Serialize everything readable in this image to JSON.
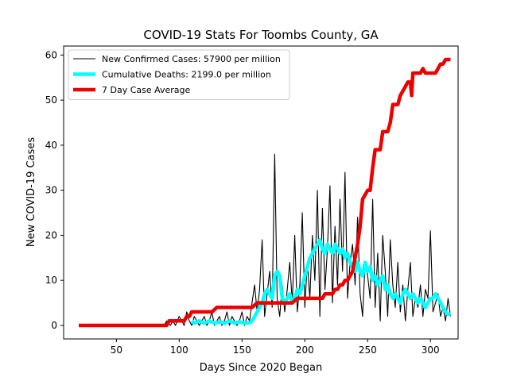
{
  "chart_data": {
    "type": "line",
    "title": "COVID-19 Stats For Toombs County, GA",
    "xlabel": "Days Since 2020 Began",
    "ylabel": "New COVID-19 Cases",
    "xlim": [
      8,
      322
    ],
    "ylim": [
      -3,
      62
    ],
    "xticks": [
      50,
      100,
      150,
      200,
      250,
      300
    ],
    "yticks": [
      0,
      10,
      20,
      30,
      40,
      50,
      60
    ],
    "grid": false,
    "legend": "top-left",
    "series": [
      {
        "name": "New Confirmed Cases: 57900 per million",
        "color": "#000000",
        "style": "thin",
        "x": [
          20,
          50,
          88,
          90,
          93,
          95,
          97,
          100,
          102,
          104,
          106,
          108,
          110,
          112,
          114,
          116,
          118,
          120,
          122,
          124,
          126,
          128,
          130,
          132,
          134,
          136,
          138,
          140,
          142,
          144,
          146,
          148,
          150,
          152,
          154,
          156,
          158,
          160,
          162,
          164,
          166,
          168,
          170,
          172,
          174,
          176,
          178,
          180,
          182,
          184,
          186,
          188,
          190,
          192,
          194,
          196,
          198,
          200,
          202,
          204,
          206,
          208,
          210,
          212,
          214,
          216,
          218,
          220,
          222,
          224,
          226,
          228,
          230,
          232,
          234,
          236,
          238,
          240,
          242,
          244,
          246,
          248,
          250,
          252,
          254,
          256,
          258,
          260,
          262,
          264,
          266,
          268,
          270,
          272,
          274,
          276,
          278,
          280,
          282,
          284,
          286,
          288,
          290,
          292,
          294,
          296,
          298,
          300,
          302,
          304,
          306,
          308,
          310,
          312,
          314,
          316
        ],
        "y": [
          0,
          0,
          0,
          1,
          0,
          1,
          0,
          2,
          1,
          0,
          3,
          1,
          0,
          2,
          1,
          0,
          1,
          2,
          0,
          1,
          3,
          0,
          1,
          2,
          0,
          1,
          3,
          0,
          2,
          1,
          0,
          1,
          3,
          0,
          2,
          1,
          5,
          9,
          3,
          8,
          19,
          2,
          7,
          12,
          4,
          38,
          6,
          2,
          9,
          3,
          8,
          14,
          5,
          20,
          3,
          9,
          25,
          4,
          14,
          6,
          20,
          10,
          30,
          2,
          26,
          8,
          17,
          31,
          5,
          22,
          9,
          28,
          12,
          34,
          6,
          14,
          18,
          9,
          24,
          7,
          2,
          14,
          11,
          6,
          28,
          4,
          16,
          1,
          20,
          12,
          2,
          19,
          9,
          4,
          14,
          3,
          9,
          1,
          8,
          14,
          2,
          6,
          4,
          9,
          2,
          8,
          6,
          21,
          3,
          5,
          7,
          2,
          4,
          1,
          6,
          2
        ]
      },
      {
        "name": "Cumulative Deaths: 2199.0 per million",
        "color": "#00ffff",
        "style": "thick",
        "x": [
          110,
          112,
          116,
          120,
          124,
          128,
          132,
          136,
          140,
          144,
          148,
          152,
          156,
          158,
          160,
          162,
          164,
          166,
          168,
          170,
          172,
          174,
          176,
          178,
          180,
          182,
          184,
          186,
          188,
          190,
          192,
          194,
          196,
          198,
          200,
          202,
          204,
          206,
          208,
          210,
          212,
          214,
          216,
          218,
          220,
          222,
          224,
          226,
          228,
          230,
          232,
          234,
          236,
          238,
          240,
          242,
          244,
          246,
          248,
          250,
          252,
          254,
          256,
          258,
          260,
          262,
          264,
          266,
          268,
          270,
          272,
          274,
          276,
          278,
          280,
          282,
          284,
          286,
          288,
          290,
          292,
          294,
          296,
          298,
          300,
          302,
          304,
          306,
          308,
          310,
          312,
          314,
          316
        ],
        "y": [
          1,
          0.5,
          1,
          0.5,
          1,
          0.5,
          0.8,
          0.5,
          1,
          0.5,
          0.8,
          0.5,
          0.6,
          1,
          2,
          3,
          4,
          5,
          7,
          8,
          7,
          6,
          11,
          12,
          11,
          6,
          5,
          6,
          7,
          5,
          6,
          8,
          7,
          9,
          11,
          13,
          15,
          16,
          17,
          18,
          19,
          17,
          16,
          18,
          17,
          16,
          18,
          17,
          16,
          17,
          15,
          16,
          14,
          13,
          12,
          14,
          12,
          11,
          14,
          12,
          13,
          10,
          11,
          9,
          10,
          11,
          8,
          9,
          7,
          6,
          7,
          6,
          5,
          7,
          8,
          7,
          6,
          7,
          6,
          5,
          6,
          5,
          4,
          5,
          6,
          6,
          7,
          6,
          5,
          4,
          3,
          2.5,
          2.5
        ]
      },
      {
        "name": "7 Day Case Average",
        "color": "#ee0000",
        "style": "thick",
        "x": [
          20,
          90,
          92,
          96,
          100,
          102,
          104,
          106,
          108,
          110,
          112,
          114,
          118,
          122,
          126,
          130,
          132,
          134,
          138,
          142,
          146,
          150,
          154,
          158,
          162,
          166,
          168,
          170,
          174,
          178,
          182,
          186,
          190,
          194,
          198,
          202,
          204,
          206,
          208,
          210,
          212,
          214,
          216,
          218,
          220,
          222,
          224,
          226,
          228,
          230,
          232,
          234,
          236,
          238,
          240,
          242,
          244,
          246,
          248,
          250,
          252,
          254,
          256,
          258,
          260,
          262,
          264,
          266,
          268,
          270,
          272,
          274,
          276,
          278,
          280,
          282,
          284,
          285,
          286,
          288,
          290,
          292,
          294,
          296,
          298,
          300,
          302,
          304,
          306,
          308,
          310,
          312,
          314,
          316
        ],
        "y": [
          0,
          0,
          1,
          1,
          1,
          1,
          1,
          2,
          2,
          3,
          3,
          3,
          3,
          3,
          3,
          4,
          4,
          4,
          4,
          4,
          4,
          4,
          4,
          4,
          5,
          5,
          5,
          5,
          5,
          5,
          5,
          5,
          5,
          6,
          6,
          6,
          6,
          6,
          6,
          6,
          6,
          6,
          7,
          7,
          7,
          7,
          8,
          8,
          9,
          9,
          10,
          10,
          11,
          12,
          15,
          18,
          22,
          28,
          29,
          30,
          30,
          35,
          39,
          39,
          39,
          43,
          43,
          43,
          45,
          49,
          49,
          49,
          51,
          52,
          53,
          54,
          54,
          51,
          56,
          56,
          56,
          56,
          57,
          56,
          56,
          56,
          56,
          56,
          57,
          58,
          58,
          59,
          59,
          59
        ]
      }
    ]
  }
}
